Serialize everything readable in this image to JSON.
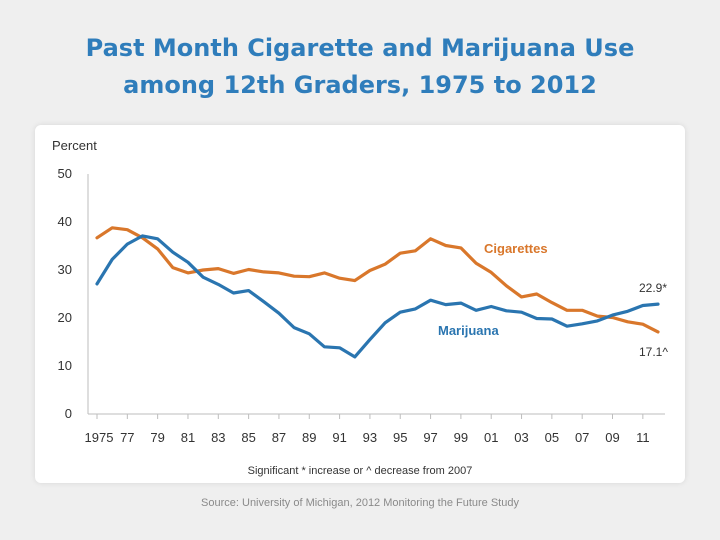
{
  "slide": {
    "title_line1": "Past Month Cigarette and Marijuana Use",
    "title_line2": "among 12th Graders, 1975 to 2012",
    "source": "Source: University of Michigan, 2012 Monitoring the Future Study"
  },
  "chart_data": {
    "type": "line",
    "title": "Past Month Cigarette and Marijuana Use among 12th Graders, 1975 to 2012",
    "ylabel": "Percent",
    "xlabel": "",
    "ylim": [
      0,
      50
    ],
    "yticks": [
      0,
      10,
      20,
      30,
      40,
      50
    ],
    "x": [
      1975,
      1976,
      1977,
      1978,
      1979,
      1980,
      1981,
      1982,
      1983,
      1984,
      1985,
      1986,
      1987,
      1988,
      1989,
      1990,
      1991,
      1992,
      1993,
      1994,
      1995,
      1996,
      1997,
      1998,
      1999,
      2000,
      2001,
      2002,
      2003,
      2004,
      2005,
      2006,
      2007,
      2008,
      2009,
      2010,
      2011,
      2012
    ],
    "xtick_labels": [
      "1975",
      "77",
      "79",
      "81",
      "83",
      "85",
      "87",
      "89",
      "91",
      "93",
      "95",
      "97",
      "99",
      "01",
      "03",
      "05",
      "07",
      "09",
      "11"
    ],
    "grid": false,
    "footnote": "Significant * increase or ^ decrease  from 2007",
    "series": [
      {
        "name": "Cigarettes",
        "color": "#d9772b",
        "values": [
          36.7,
          38.8,
          38.4,
          36.7,
          34.4,
          30.5,
          29.4,
          30.0,
          30.3,
          29.3,
          30.1,
          29.6,
          29.4,
          28.7,
          28.6,
          29.4,
          28.3,
          27.8,
          29.9,
          31.2,
          33.5,
          34.0,
          36.5,
          35.1,
          34.6,
          31.4,
          29.5,
          26.7,
          24.4,
          25.0,
          23.2,
          21.6,
          21.6,
          20.4,
          20.1,
          19.2,
          18.7,
          17.1
        ],
        "end_label": "17.1^"
      },
      {
        "name": "Marijuana",
        "color": "#2a75b0",
        "values": [
          27.1,
          32.2,
          35.4,
          37.1,
          36.5,
          33.7,
          31.6,
          28.5,
          27.0,
          25.2,
          25.7,
          23.4,
          21.0,
          18.0,
          16.7,
          14.0,
          13.8,
          11.9,
          15.5,
          19.0,
          21.2,
          21.9,
          23.7,
          22.8,
          23.1,
          21.6,
          22.4,
          21.5,
          21.2,
          19.9,
          19.8,
          18.3,
          18.8,
          19.4,
          20.6,
          21.4,
          22.6,
          22.9
        ],
        "end_label": "22.9*"
      }
    ]
  }
}
